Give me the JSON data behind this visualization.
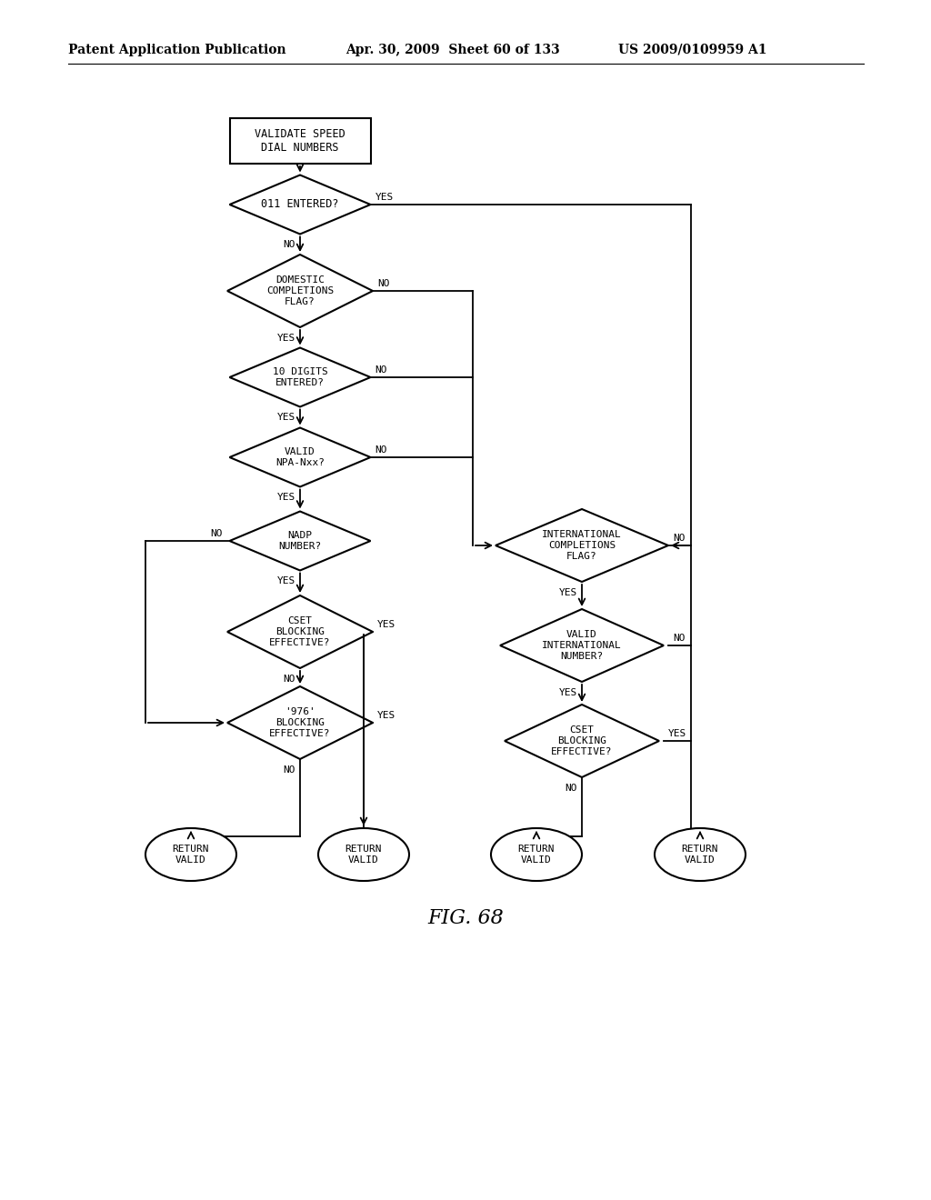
{
  "title": "FIG. 68",
  "header_left": "Patent Application Publication",
  "header_center": "Apr. 30, 2009  Sheet 60 of 133",
  "header_right": "US 2009/0109959 A1",
  "background_color": "#ffffff"
}
